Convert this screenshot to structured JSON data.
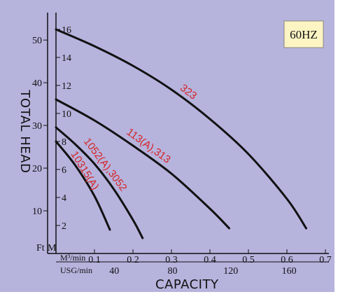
{
  "chart_data": {
    "type": "line",
    "title": "",
    "badge": "60HZ",
    "xlabel": "CAPACITY",
    "ylabel": "TOTAL HEAD",
    "x_unit_primary": "M³/min",
    "x_unit_secondary": "USG/min",
    "y_unit_left": "Ft",
    "y_unit_right": "M",
    "xlim": [
      0,
      0.7
    ],
    "ylim_m": [
      0,
      17
    ],
    "x_ticks_primary": [
      {
        "value": 0.1,
        "label": "0.1"
      },
      {
        "value": 0.2,
        "label": "0.2"
      },
      {
        "value": 0.3,
        "label": "0.3"
      },
      {
        "value": 0.4,
        "label": "0.4"
      },
      {
        "value": 0.5,
        "label": "0.5"
      },
      {
        "value": 0.6,
        "label": "0.6"
      },
      {
        "value": 0.7,
        "label": "0.7"
      }
    ],
    "x_ticks_secondary": [
      {
        "value": 40,
        "label": "40"
      },
      {
        "value": 80,
        "label": "80"
      },
      {
        "value": 120,
        "label": "120"
      },
      {
        "value": 160,
        "label": "160"
      }
    ],
    "y_ticks_m": [
      {
        "value": 2,
        "label": "2"
      },
      {
        "value": 4,
        "label": "4"
      },
      {
        "value": 6,
        "label": "6"
      },
      {
        "value": 8,
        "label": "8"
      },
      {
        "value": 10,
        "label": "10"
      },
      {
        "value": 12,
        "label": "12"
      },
      {
        "value": 14,
        "label": "14"
      },
      {
        "value": 16,
        "label": "16"
      }
    ],
    "y_ticks_ft": [
      {
        "value": 10,
        "label": "10"
      },
      {
        "value": 20,
        "label": "20"
      },
      {
        "value": 30,
        "label": "30"
      },
      {
        "value": 40,
        "label": "40"
      },
      {
        "value": 50,
        "label": "50"
      }
    ],
    "series": [
      {
        "name": "323",
        "color": "#111111",
        "x": [
          0.0,
          0.1,
          0.2,
          0.3,
          0.4,
          0.5,
          0.6,
          0.65
        ],
        "y": [
          16.0,
          14.8,
          13.4,
          11.7,
          9.6,
          7.1,
          3.9,
          1.8
        ]
      },
      {
        "name": "113(A),313",
        "color": "#111111",
        "x": [
          0.0,
          0.1,
          0.2,
          0.3,
          0.4,
          0.45
        ],
        "y": [
          11.0,
          9.5,
          7.7,
          5.7,
          3.2,
          1.8
        ]
      },
      {
        "name": "1052(A),3052",
        "color": "#111111",
        "x": [
          0.0,
          0.05,
          0.1,
          0.15,
          0.2,
          0.225
        ],
        "y": [
          9.0,
          7.8,
          6.4,
          4.6,
          2.4,
          1.1
        ]
      },
      {
        "name": "10315(A)",
        "color": "#111111",
        "x": [
          0.0,
          0.05,
          0.1,
          0.14
        ],
        "y": [
          8.0,
          6.3,
          4.1,
          1.7
        ]
      }
    ]
  }
}
